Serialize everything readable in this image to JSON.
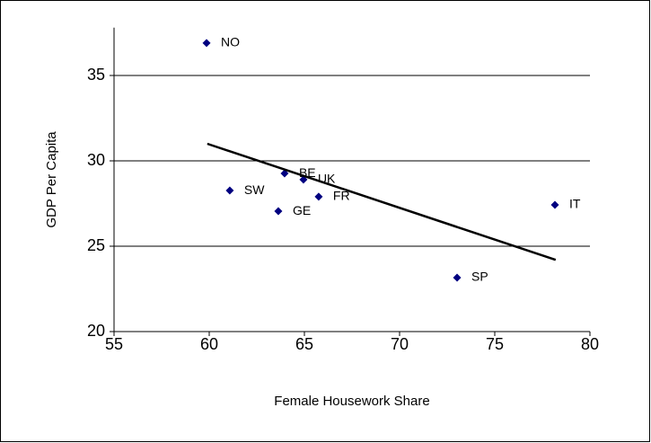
{
  "chart_data": {
    "type": "scatter",
    "x_label": "Female Housework Share",
    "y_label": "GDP Per Capita",
    "labels": [
      "NO",
      "BE",
      "UK",
      "FR",
      "SW",
      "GE",
      "IT",
      "SP"
    ],
    "x": [
      59.86,
      63.96,
      64.95,
      65.75,
      61.08,
      63.63,
      78.16,
      73.02
    ],
    "values": [
      36.9,
      29.26,
      28.9,
      27.9,
      28.26,
      27.05,
      27.42,
      23.16
    ],
    "color": "#000080",
    "trendline": {
      "x": [
        59.9,
        78.2
      ],
      "y": [
        31.0,
        24.2
      ],
      "color": "#000000"
    },
    "xlim": [
      55,
      80
    ],
    "xticks": [
      55,
      60,
      65,
      70,
      75,
      80
    ],
    "ylim": [
      20,
      37.8
    ],
    "yticks": [
      20,
      25,
      30,
      35
    ],
    "grid": true
  }
}
